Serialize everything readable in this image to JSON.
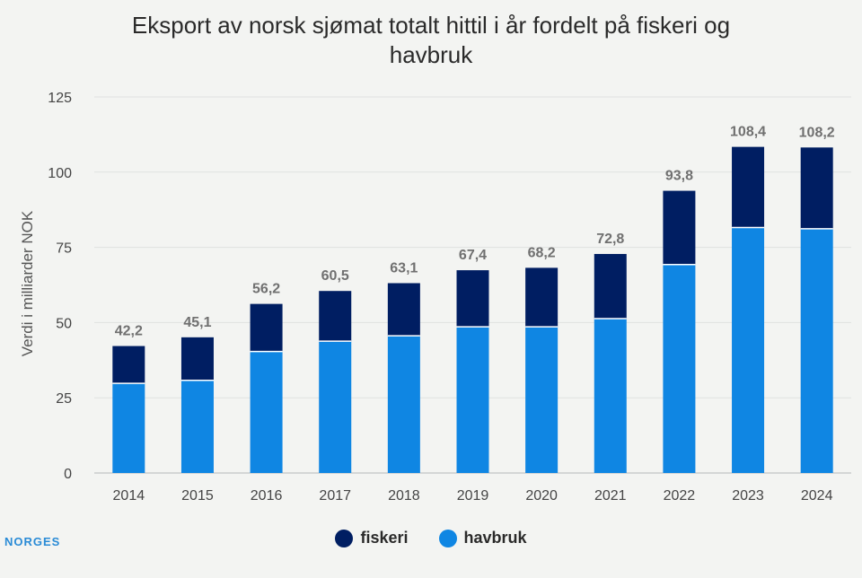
{
  "title_line1": "Eksport av norsk sjømat totalt hittil i år fordelt på fiskeri og",
  "title_line2": "havbruk",
  "logo_text": "NORGES",
  "chart_data": {
    "type": "bar",
    "stacked": true,
    "title": "Eksport av norsk sjømat totalt hittil i år fordelt på fiskeri og havbruk",
    "xlabel": "",
    "ylabel": "Verdi i milliarder NOK",
    "ylim": [
      0,
      125
    ],
    "yticks": [
      0,
      25,
      50,
      75,
      100,
      125
    ],
    "categories": [
      "2014",
      "2015",
      "2016",
      "2017",
      "2018",
      "2019",
      "2020",
      "2021",
      "2022",
      "2023",
      "2024"
    ],
    "series": [
      {
        "name": "havbruk",
        "color": "#0f86e3",
        "values": [
          29.8,
          30.8,
          40.4,
          43.8,
          45.6,
          48.6,
          48.6,
          51.3,
          69.3,
          81.6,
          81.2
        ]
      },
      {
        "name": "fiskeri",
        "color": "#001e62",
        "values": [
          12.4,
          14.3,
          15.8,
          16.7,
          17.5,
          18.8,
          19.6,
          21.5,
          24.5,
          26.8,
          27.0
        ]
      }
    ],
    "totals": [
      "42,2",
      "45,1",
      "56,2",
      "60,5",
      "63,1",
      "67,4",
      "68,2",
      "72,8",
      "93,8",
      "108,4",
      "108,2"
    ],
    "legend": [
      "fiskeri",
      "havbruk"
    ],
    "legend_position": "bottom"
  }
}
